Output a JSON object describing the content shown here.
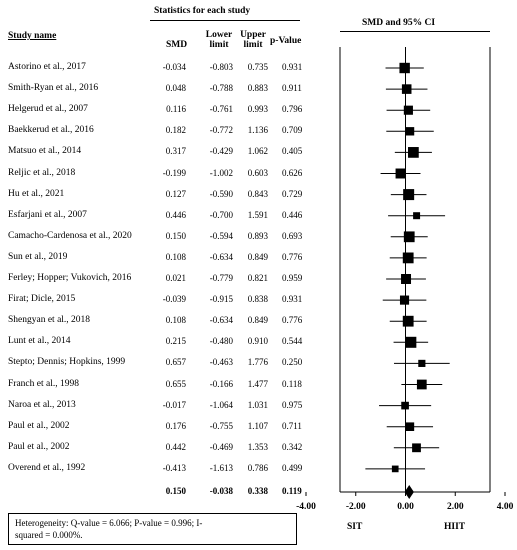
{
  "header": {
    "stats_title": "Statistics for each study",
    "plot_title": "SMD and 95% CI",
    "col_study": "Study name",
    "col_smd": "SMD",
    "col_lower": "Lower limit",
    "col_upper": "Upper limit",
    "col_p": "p-Value"
  },
  "chart_data": {
    "type": "forest",
    "x_ticks": [
      "-4.00",
      "-2.00",
      "0.00",
      "2.00",
      "4.00"
    ],
    "xlim": [
      -4,
      4
    ],
    "left_label": "SIT",
    "right_label": "HIIT",
    "studies": [
      {
        "name": "Astorino et al., 2017",
        "smd": "-0.034",
        "lower": "-0.803",
        "upper": "0.735",
        "p": "0.931"
      },
      {
        "name": "Smith-Ryan et al., 2016",
        "smd": "0.048",
        "lower": "-0.788",
        "upper": "0.883",
        "p": "0.911"
      },
      {
        "name": "Helgerud et al., 2007",
        "smd": "0.116",
        "lower": "-0.761",
        "upper": "0.993",
        "p": "0.796"
      },
      {
        "name": "Baekkerud et al., 2016",
        "smd": "0.182",
        "lower": "-0.772",
        "upper": "1.136",
        "p": "0.709"
      },
      {
        "name": "Matsuo et al., 2014",
        "smd": "0.317",
        "lower": "-0.429",
        "upper": "1.062",
        "p": "0.405"
      },
      {
        "name": "Reljic et al., 2018",
        "smd": "-0.199",
        "lower": "-1.002",
        "upper": "0.603",
        "p": "0.626"
      },
      {
        "name": "Hu et al., 2021",
        "smd": "0.127",
        "lower": "-0.590",
        "upper": "0.843",
        "p": "0.729"
      },
      {
        "name": "Esfarjani et al., 2007",
        "smd": "0.446",
        "lower": "-0.700",
        "upper": "1.591",
        "p": "0.446"
      },
      {
        "name": "Camacho-Cardenosa et al., 2020",
        "smd": "0.150",
        "lower": "-0.594",
        "upper": "0.893",
        "p": "0.693"
      },
      {
        "name": "Sun et al., 2019",
        "smd": "0.108",
        "lower": "-0.634",
        "upper": "0.849",
        "p": "0.776"
      },
      {
        "name": "Ferley; Hopper; Vukovich, 2016",
        "smd": "0.021",
        "lower": "-0.779",
        "upper": "0.821",
        "p": "0.959"
      },
      {
        "name": "Firat; Dicle, 2015",
        "smd": "-0.039",
        "lower": "-0.915",
        "upper": "0.838",
        "p": "0.931"
      },
      {
        "name": "Shengyan et al., 2018",
        "smd": "0.108",
        "lower": "-0.634",
        "upper": "0.849",
        "p": "0.776"
      },
      {
        "name": "Lunt et al., 2014",
        "smd": "0.215",
        "lower": "-0.480",
        "upper": "0.910",
        "p": "0.544"
      },
      {
        "name": "Stepto; Dennis; Hopkins, 1999",
        "smd": "0.657",
        "lower": "-0.463",
        "upper": "1.776",
        "p": "0.250"
      },
      {
        "name": "Franch et al., 1998",
        "smd": "0.655",
        "lower": "-0.166",
        "upper": "1.477",
        "p": "0.118"
      },
      {
        "name": "Naroa et al., 2013",
        "smd": "-0.017",
        "lower": "-1.064",
        "upper": "1.031",
        "p": "0.975"
      },
      {
        "name": "Paul et al., 2002",
        "smd": "0.176",
        "lower": "-0.755",
        "upper": "1.107",
        "p": "0.711"
      },
      {
        "name": "Paul et al., 2002",
        "smd": "0.442",
        "lower": "-0.469",
        "upper": "1.353",
        "p": "0.342"
      },
      {
        "name": "Overend et al., 1992",
        "smd": "-0.413",
        "lower": "-1.613",
        "upper": "0.786",
        "p": "0.499"
      }
    ],
    "pooled": {
      "smd": "0.150",
      "lower": "-0.038",
      "upper": "0.338",
      "p": "0.119"
    }
  },
  "heterogeneity": {
    "line1": "Heterogeneity:  Q-value = 6.066;  P-value = 0.996;  I-",
    "line2": "squared = 0.000%."
  }
}
